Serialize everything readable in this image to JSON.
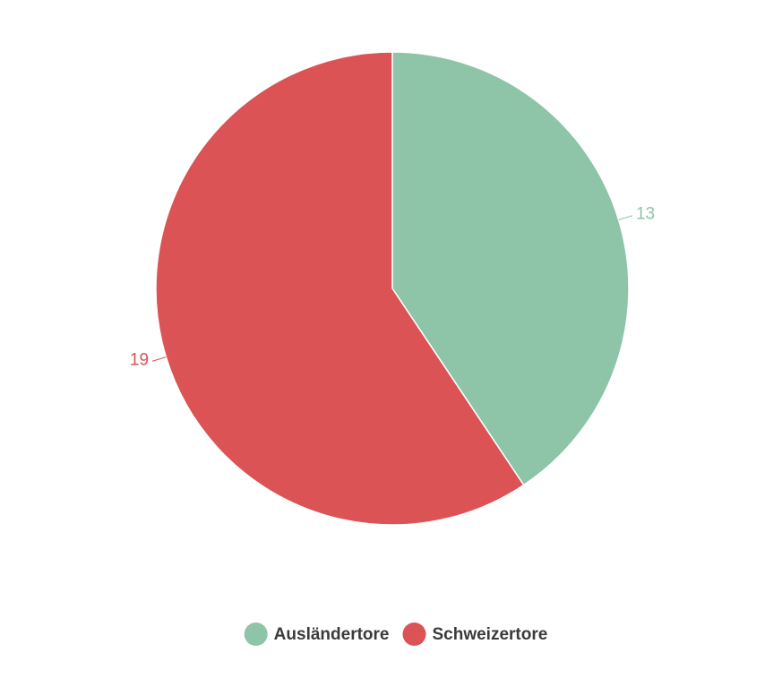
{
  "chart_data": {
    "type": "pie",
    "categories": [
      "Ausländertore",
      "Schweizertore"
    ],
    "values": [
      13,
      19
    ],
    "colors": [
      "#8ec4a8",
      "#db5355"
    ],
    "legend": "bottom"
  }
}
